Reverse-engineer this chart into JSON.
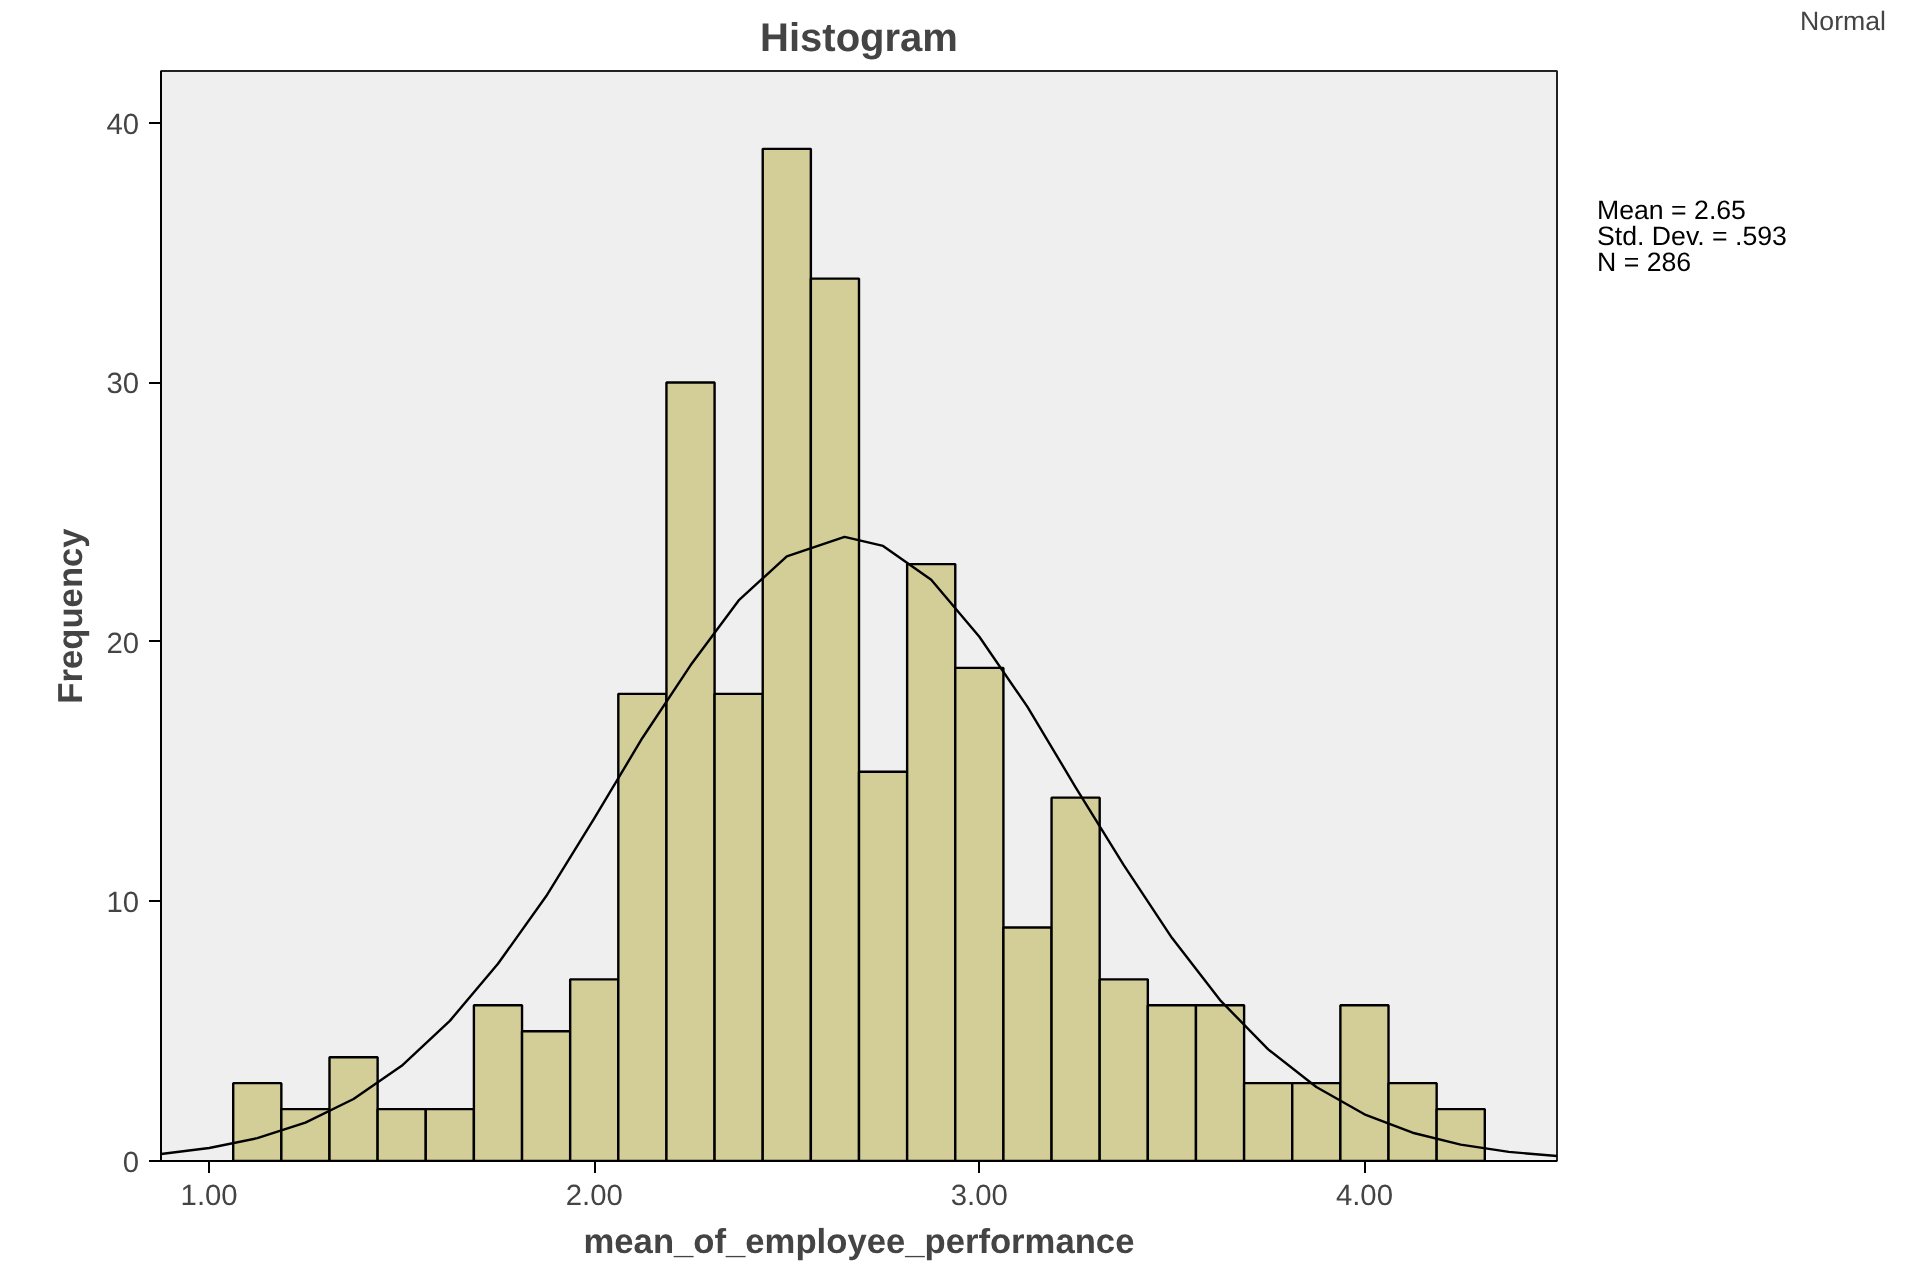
{
  "chart_data": {
    "type": "histogram",
    "title": "Histogram",
    "xlabel": "mean_of_employee_performance",
    "ylabel": "Frequency",
    "bins": [
      1.0625,
      1.1875,
      1.3125,
      1.4375,
      1.5625,
      1.6875,
      1.8125,
      1.9375,
      2.0625,
      2.1875,
      2.3125,
      2.4375,
      2.5625,
      2.6875,
      2.8125,
      2.9375,
      3.0625,
      3.1875,
      3.3125,
      3.4375,
      3.5625,
      3.6875,
      3.8125,
      3.9375,
      4.0625,
      4.1875,
      4.3125
    ],
    "values": [
      3,
      2,
      4,
      2,
      2,
      6,
      5,
      7,
      18,
      30,
      18,
      39,
      34,
      15,
      23,
      19,
      9,
      14,
      7,
      6,
      6,
      3,
      3,
      6,
      3,
      2
    ],
    "color": "#d3ce97",
    "series": [
      {
        "name": "Normal",
        "type": "line",
        "color": "#000000",
        "x": [
          0.875,
          1.0,
          1.125,
          1.25,
          1.375,
          1.5,
          1.625,
          1.75,
          1.875,
          2.0,
          2.125,
          2.25,
          2.375,
          2.5,
          2.65,
          2.75,
          2.875,
          3.0,
          3.125,
          3.25,
          3.375,
          3.5,
          3.625,
          3.75,
          3.875,
          4.0,
          4.125,
          4.25,
          4.375,
          4.5
        ],
        "values": [
          0.27,
          0.5,
          0.88,
          1.48,
          2.39,
          3.67,
          5.4,
          7.6,
          10.2,
          13.2,
          16.3,
          19.1,
          21.6,
          23.3,
          24.05,
          23.7,
          22.4,
          20.2,
          17.5,
          14.4,
          11.4,
          8.6,
          6.2,
          4.3,
          2.85,
          1.8,
          1.09,
          0.63,
          0.35,
          0.19
        ]
      }
    ],
    "xlim": [
      0.875,
      4.5
    ],
    "ylim": [
      0,
      42
    ],
    "xticks": [
      {
        "value": 1,
        "label": "1.00"
      },
      {
        "value": 2,
        "label": "2.00"
      },
      {
        "value": 3,
        "label": "3.00"
      },
      {
        "value": 4,
        "label": "4.00"
      }
    ],
    "yticks": [
      0,
      10,
      20,
      30,
      40
    ],
    "grid": false,
    "legend": "top right",
    "annotations": [
      "Mean = 2.65",
      "Std. Dev. = .593",
      "N = 286"
    ]
  }
}
